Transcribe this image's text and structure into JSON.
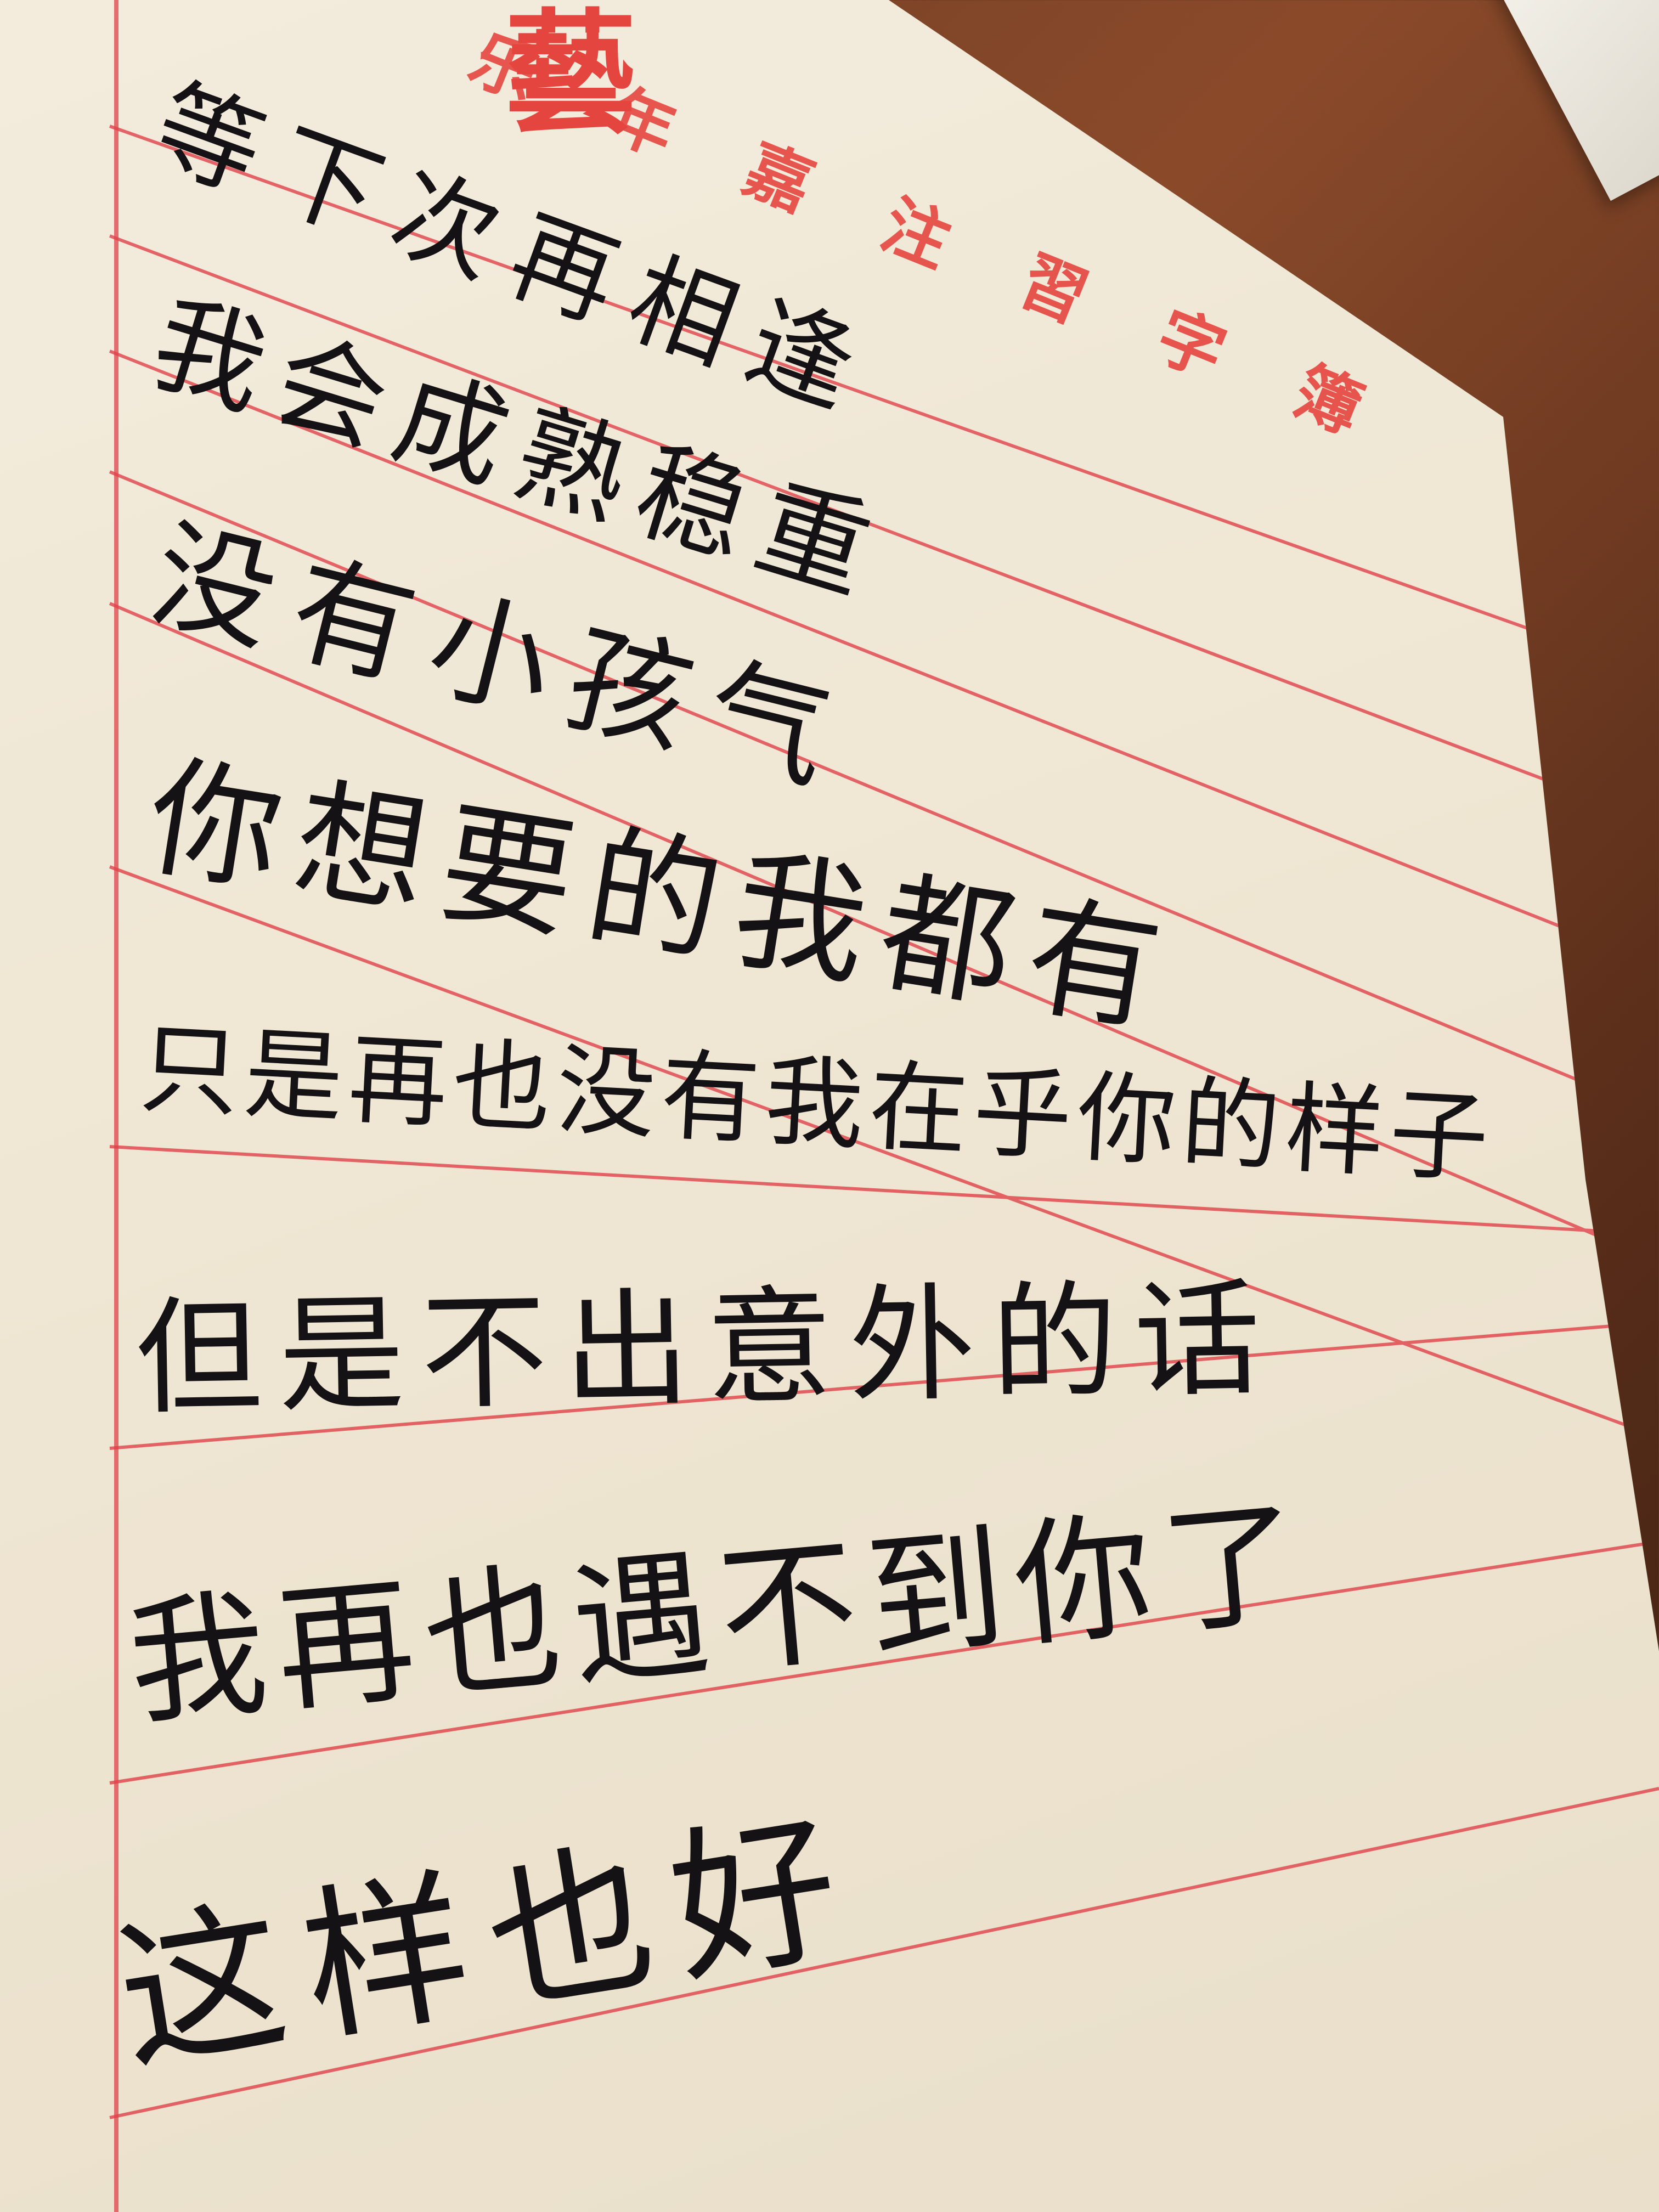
{
  "notebook": {
    "header_title": "乐年嘉注習字簿",
    "header_logo_char": "藝",
    "accent_color": "#e5453f",
    "ink_color": "#141214"
  },
  "handwriting": {
    "lines": [
      "等下次再相逢",
      "我会成熟稳重",
      "没有小孩气",
      "你想要的我都有",
      "只是再也没有我在乎你的样子",
      "但是不出意外的话",
      "我再也遇不到你了",
      "这样也好"
    ]
  }
}
